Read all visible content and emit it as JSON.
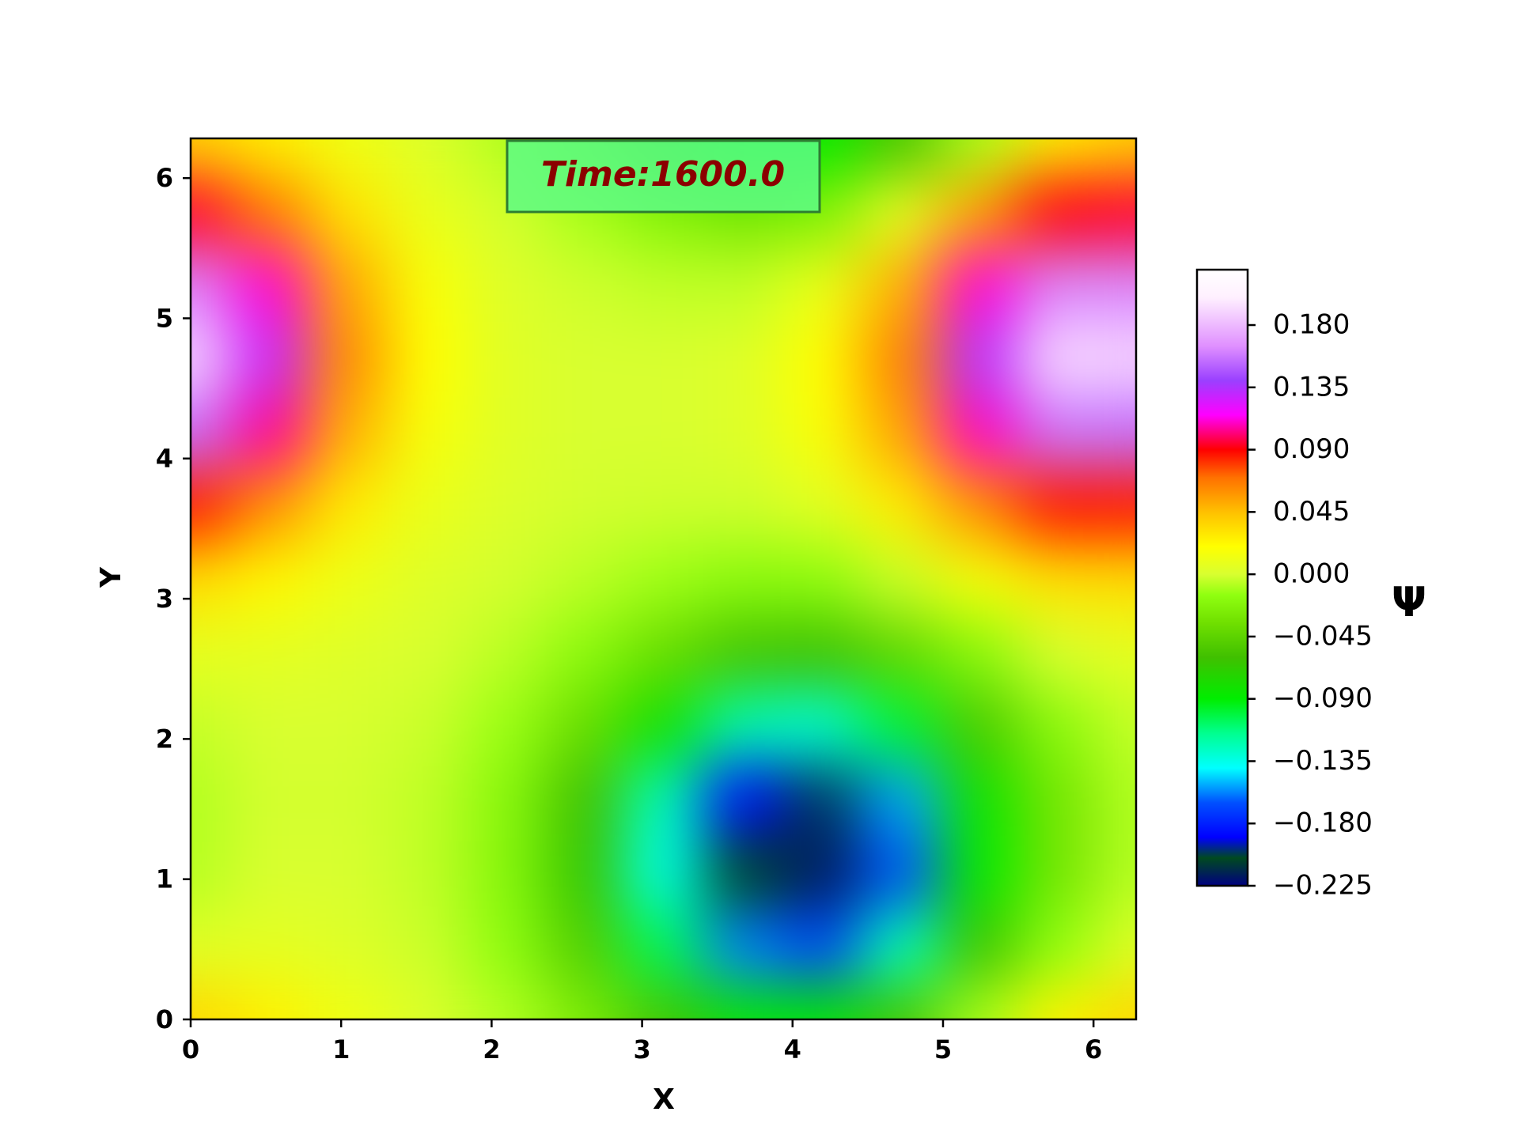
{
  "chart_data": {
    "type": "heatmap",
    "x_label": "X",
    "y_label": "Y",
    "annotation": "Time:1600.0",
    "x": [
      0,
      0.524,
      1.047,
      1.571,
      2.094,
      2.618,
      3.142,
      3.665,
      4.189,
      4.712,
      5.236,
      5.76,
      6.283
    ],
    "y": [
      0,
      0.524,
      1.047,
      1.571,
      2.094,
      2.618,
      3.142,
      3.665,
      4.189,
      4.712,
      5.236,
      5.76,
      6.283
    ],
    "z": [
      [
        0.036,
        0.026,
        0.012,
        0.002,
        -0.008,
        -0.027,
        -0.057,
        -0.086,
        -0.088,
        -0.057,
        -0.01,
        0.025,
        0.036
      ],
      [
        0.004,
        0.006,
        0.003,
        -0.003,
        -0.016,
        -0.05,
        -0.105,
        -0.158,
        -0.168,
        -0.124,
        -0.061,
        -0.015,
        0.004
      ],
      [
        -0.007,
        0.0,
        0.0,
        -0.005,
        -0.021,
        -0.064,
        -0.135,
        -0.205,
        -0.218,
        -0.165,
        -0.088,
        -0.032,
        -0.007
      ],
      [
        -0.008,
        -0.001,
        -0.001,
        -0.005,
        -0.02,
        -0.059,
        -0.125,
        -0.188,
        -0.201,
        -0.153,
        -0.083,
        -0.032,
        -0.008
      ],
      [
        -0.004,
        0.0,
        0.0,
        -0.003,
        -0.013,
        -0.038,
        -0.081,
        -0.123,
        -0.131,
        -0.099,
        -0.053,
        -0.019,
        -0.004
      ],
      [
        0.007,
        0.006,
        0.003,
        0.0,
        -0.006,
        -0.018,
        -0.038,
        -0.057,
        -0.06,
        -0.043,
        -0.019,
        0.0,
        0.007
      ],
      [
        0.033,
        0.023,
        0.011,
        0.003,
        -0.001,
        -0.006,
        -0.012,
        -0.018,
        -0.016,
        -0.003,
        0.016,
        0.031,
        0.033
      ],
      [
        0.086,
        0.059,
        0.028,
        0.009,
        0.002,
        -0.001,
        -0.002,
        -0.002,
        0.005,
        0.027,
        0.06,
        0.087,
        0.086
      ],
      [
        0.154,
        0.105,
        0.049,
        0.016,
        0.004,
        0.0,
        0.0,
        0.003,
        0.017,
        0.053,
        0.109,
        0.156,
        0.154
      ],
      [
        0.19,
        0.13,
        0.061,
        0.02,
        0.004,
        0.0,
        0.0,
        0.003,
        0.02,
        0.064,
        0.134,
        0.192,
        0.19
      ],
      [
        0.162,
        0.111,
        0.052,
        0.017,
        0.003,
        -0.002,
        -0.005,
        -0.005,
        0.009,
        0.049,
        0.111,
        0.162,
        0.162
      ],
      [
        0.095,
        0.066,
        0.031,
        0.009,
        -0.001,
        -0.01,
        -0.022,
        -0.031,
        -0.025,
        0.006,
        0.054,
        0.092,
        0.095
      ],
      [
        0.036,
        0.026,
        0.012,
        0.002,
        -0.008,
        -0.027,
        -0.057,
        -0.086,
        -0.088,
        -0.057,
        -0.01,
        0.025,
        0.036
      ]
    ],
    "xlim": [
      0,
      6.283
    ],
    "ylim": [
      0,
      6.283
    ],
    "xticks": [
      0,
      1,
      2,
      3,
      4,
      5,
      6
    ],
    "yticks": [
      0,
      1,
      2,
      3,
      4,
      5,
      6
    ],
    "colorbar": {
      "label": "Ψ",
      "clim": [
        -0.225,
        0.22
      ],
      "ticks": [
        {
          "value": -0.225,
          "label": "−0.225"
        },
        {
          "value": -0.18,
          "label": "−0.180"
        },
        {
          "value": -0.135,
          "label": "−0.135"
        },
        {
          "value": -0.09,
          "label": "−0.090"
        },
        {
          "value": -0.045,
          "label": "−0.045"
        },
        {
          "value": 0,
          "label": "0.000"
        },
        {
          "value": 0.045,
          "label": "0.045"
        },
        {
          "value": 0.09,
          "label": "0.090"
        },
        {
          "value": 0.135,
          "label": "0.135"
        },
        {
          "value": 0.18,
          "label": "0.180"
        }
      ]
    },
    "colormap": [
      [
        -0.225,
        "#000080"
      ],
      [
        -0.205,
        "#004a20"
      ],
      [
        -0.19,
        "#0000ff"
      ],
      [
        -0.165,
        "#0050ff"
      ],
      [
        -0.14,
        "#00ffff"
      ],
      [
        -0.115,
        "#00ff90"
      ],
      [
        -0.09,
        "#00ee00"
      ],
      [
        -0.06,
        "#40c000"
      ],
      [
        -0.035,
        "#70e000"
      ],
      [
        -0.015,
        "#90ff10"
      ],
      [
        0,
        "#d8ff30"
      ],
      [
        0.02,
        "#ffff00"
      ],
      [
        0.045,
        "#ffc000"
      ],
      [
        0.07,
        "#ff7000"
      ],
      [
        0.09,
        "#ff0000"
      ],
      [
        0.115,
        "#ff00ff"
      ],
      [
        0.14,
        "#9a40ff"
      ],
      [
        0.165,
        "#e090ff"
      ],
      [
        0.2,
        "#fff0ff"
      ],
      [
        0.22,
        "#ffffff"
      ]
    ]
  }
}
